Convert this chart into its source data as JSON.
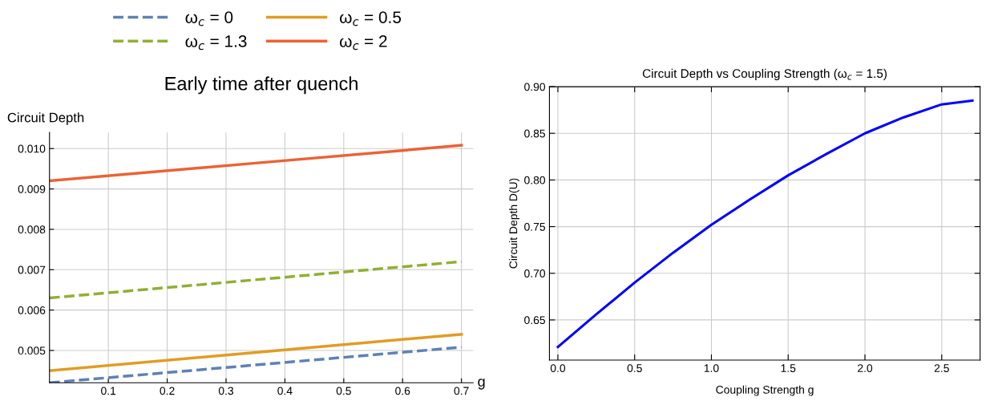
{
  "chart_data": [
    {
      "type": "line",
      "title": "Early time after quench",
      "xlabel": "g",
      "ylabel": "Circuit Depth",
      "x": [
        0,
        0.35,
        0.7
      ],
      "series": [
        {
          "name": "ω$_{c}$ = 0",
          "color": "#5e81b5",
          "values": [
            0.0042,
            0.00464,
            0.00508
          ],
          "line_style": "dashed"
        },
        {
          "name": "ω$_{c}$ = 0.5",
          "color": "#e19c24",
          "values": [
            0.0045,
            0.00495,
            0.0054
          ],
          "line_style": "solid"
        },
        {
          "name": "ω$_{c}$ = 1.3",
          "color": "#8fb032",
          "values": [
            0.0063,
            0.00675,
            0.0072
          ],
          "line_style": "dashed"
        },
        {
          "name": "ω$_{c}$ = 2",
          "color": "#eb6235",
          "values": [
            0.0092,
            0.00964,
            0.01008
          ],
          "line_style": "solid"
        }
      ],
      "xlim": [
        0,
        0.72
      ],
      "xticks": [
        0.1,
        0.2,
        0.3,
        0.4,
        0.5,
        0.6,
        0.7
      ],
      "ylim": [
        0.0042,
        0.0104
      ],
      "yticks": [
        {
          "value": 0.005,
          "label": "0.005"
        },
        {
          "value": 0.006,
          "label": "0.006"
        },
        {
          "value": 0.007,
          "label": "0.007"
        },
        {
          "value": 0.008,
          "label": "0.008"
        },
        {
          "value": 0.009,
          "label": "0.009"
        },
        {
          "value": 0.01,
          "label": "0.010"
        }
      ],
      "grid": true,
      "legend": "top",
      "marker": "none"
    },
    {
      "type": "line",
      "title": "Circuit Depth vs Coupling Strength (ω$_{c}$ = 1.5)",
      "xlabel": "Coupling Strength g",
      "ylabel": "Circuit Depth D(U)",
      "x": [
        0,
        0.25,
        0.5,
        0.75,
        1.0,
        1.25,
        1.5,
        1.75,
        2.0,
        2.25,
        2.5,
        2.7
      ],
      "series": [
        {
          "color": "#0000ff",
          "values": [
            0.621,
            0.656,
            0.69,
            0.722,
            0.752,
            0.779,
            0.805,
            0.828,
            0.85,
            0.867,
            0.881,
            0.885
          ],
          "line_style": "solid"
        }
      ],
      "xlim": [
        -0.055,
        2.75
      ],
      "xticks": [
        {
          "value": 0,
          "label": "0.0"
        },
        0.5,
        {
          "value": 1,
          "label": "1.0"
        },
        1.5,
        {
          "value": 2,
          "label": "2.0"
        },
        2.5
      ],
      "ylim": [
        0.607,
        0.9
      ],
      "yticks": [
        0.65,
        {
          "value": 0.7,
          "label": "0.70"
        },
        0.75,
        {
          "value": 0.8,
          "label": "0.80"
        },
        0.85,
        {
          "value": 0.9,
          "label": "0.90"
        }
      ],
      "grid": true,
      "marker": "none"
    }
  ]
}
